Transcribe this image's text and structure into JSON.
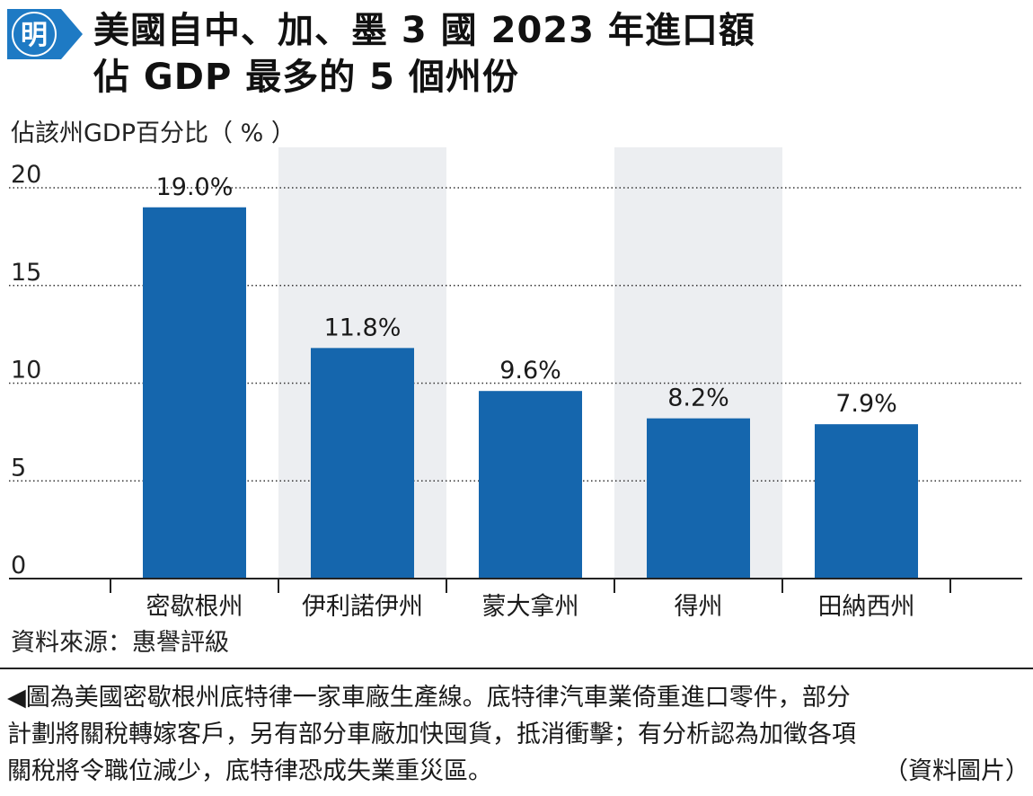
{
  "logo": {
    "text": "明",
    "color": "#1e7ac4"
  },
  "title": {
    "line1": "美國自中、加、墨 3 國 2023 年進口額",
    "line2": "佔 GDP 最多的 5 個州份"
  },
  "chart_data": {
    "type": "bar",
    "ylabel": "佔該州GDP百分比（ % ）",
    "ylim": [
      0,
      20
    ],
    "yticks": [
      0,
      5,
      10,
      15,
      20
    ],
    "categories": [
      "密歇根州",
      "伊利諾伊州",
      "蒙大拿州",
      "得州",
      "田納西州"
    ],
    "values": [
      19.0,
      11.8,
      9.6,
      8.2,
      7.9
    ],
    "value_labels": [
      "19.0%",
      "11.8%",
      "9.6%",
      "8.2%",
      "7.9%"
    ],
    "shaded_categories": [
      "伊利諾伊州",
      "得州"
    ],
    "bar_color": "#1566ad",
    "shade_color": "#eceef1",
    "grid": "dotted"
  },
  "source": "資料來源：惠譽評級",
  "caption": {
    "line1": "◀圖為美國密歇根州底特律一家車廠生產線。底特律汽車業倚重進口零件，部分",
    "line2": "計劃將關稅轉嫁客戶，另有部分車廠加快囤貨，抵消衝擊；有分析認為加徵各項",
    "line3": "關稅將令職位減少，底特律恐成失業重災區。",
    "credit": "（資料圖片）"
  }
}
